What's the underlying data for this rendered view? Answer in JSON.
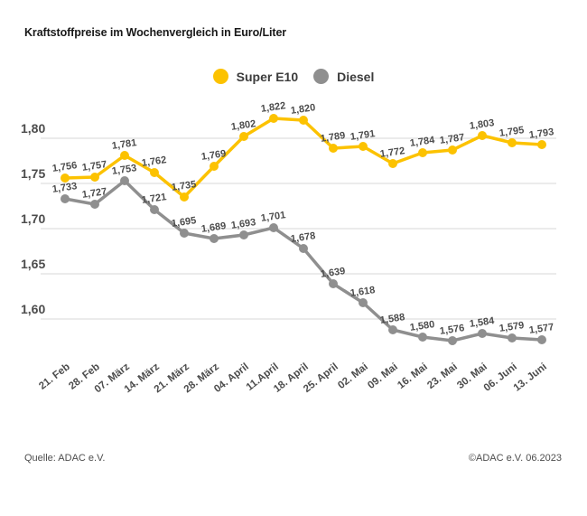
{
  "title": "Kraftstoffpreise im Wochenvergleich in Euro/Liter",
  "footer": {
    "source": "Quelle: ADAC e.V.",
    "copyright": "©ADAC e.V. 06.2023"
  },
  "colors": {
    "super_e10": "#FCC200",
    "diesel": "#8F8F8F",
    "gridline": "#D7D7D7",
    "tick_text": "#4C4C4C",
    "title_text": "#191919"
  },
  "chart_data": {
    "type": "line",
    "title": "Kraftstoffpreise im Wochenvergleich in Euro/Liter",
    "xlabel": "",
    "ylabel": "Euro/Liter",
    "grid": true,
    "legend_position": "top-center",
    "decimal_separator": ",",
    "categories": [
      "21. Feb",
      "28. Feb",
      "07. März",
      "14. März",
      "21. März",
      "28. März",
      "04. April",
      "11.April",
      "18. April",
      "25. April",
      "02. Mai",
      "09. Mai",
      "16. Mai",
      "23. Mai",
      "30. Mai",
      "06. Juni",
      "13. Juni"
    ],
    "yticks": [
      1.8,
      1.75,
      1.7,
      1.65,
      1.6
    ],
    "ylim": [
      1.565,
      1.84
    ],
    "series": [
      {
        "name": "Super E10",
        "color": "#FCC200",
        "values": [
          1.756,
          1.757,
          1.781,
          1.762,
          1.735,
          1.769,
          1.802,
          1.822,
          1.82,
          1.789,
          1.791,
          1.772,
          1.784,
          1.787,
          1.803,
          1.795,
          1.793
        ]
      },
      {
        "name": "Diesel",
        "color": "#8F8F8F",
        "values": [
          1.733,
          1.727,
          1.753,
          1.721,
          1.695,
          1.689,
          1.693,
          1.701,
          1.678,
          1.639,
          1.618,
          1.588,
          1.58,
          1.576,
          1.584,
          1.579,
          1.577
        ]
      }
    ]
  }
}
